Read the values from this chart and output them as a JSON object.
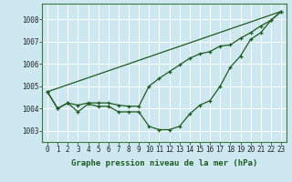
{
  "title": "Graphe pression niveau de la mer (hPa)",
  "background_color": "#cde8f0",
  "line_color": "#1e5c1e",
  "grid_color": "#b8dce8",
  "ylim": [
    1002.5,
    1008.7
  ],
  "xlim": [
    -0.5,
    23.5
  ],
  "yticks": [
    1003,
    1004,
    1005,
    1006,
    1007,
    1008
  ],
  "xticks": [
    0,
    1,
    2,
    3,
    4,
    5,
    6,
    7,
    8,
    9,
    10,
    11,
    12,
    13,
    14,
    15,
    16,
    17,
    18,
    19,
    20,
    21,
    22,
    23
  ],
  "series1_x": [
    0,
    1,
    2,
    3,
    4,
    5,
    6,
    7,
    8,
    9,
    10,
    11,
    12,
    13,
    14,
    15,
    16,
    17,
    18,
    19,
    20,
    21,
    22,
    23
  ],
  "series1_y": [
    1004.75,
    1004.0,
    1004.25,
    1003.85,
    1004.2,
    1004.1,
    1004.1,
    1003.85,
    1003.85,
    1003.85,
    1003.2,
    1003.05,
    1003.05,
    1003.2,
    1003.75,
    1004.15,
    1004.35,
    1005.0,
    1005.85,
    1006.35,
    1007.1,
    1007.4,
    1007.95,
    1008.35
  ],
  "series2_x": [
    0,
    1,
    2,
    3,
    4,
    5,
    6,
    7,
    8,
    9,
    10,
    11,
    12,
    13,
    14,
    15,
    16,
    17,
    18,
    19,
    20,
    21,
    22,
    23
  ],
  "series2_y": [
    1004.75,
    1004.0,
    1004.25,
    1004.15,
    1004.25,
    1004.25,
    1004.25,
    1004.15,
    1004.1,
    1004.1,
    1005.0,
    1005.35,
    1005.65,
    1005.95,
    1006.25,
    1006.45,
    1006.55,
    1006.8,
    1006.85,
    1007.15,
    1007.4,
    1007.7,
    1007.95,
    1008.35
  ],
  "series3_x": [
    0,
    23
  ],
  "series3_y": [
    1004.75,
    1008.35
  ],
  "title_fontsize": 6.5,
  "tick_fontsize": 5.5
}
